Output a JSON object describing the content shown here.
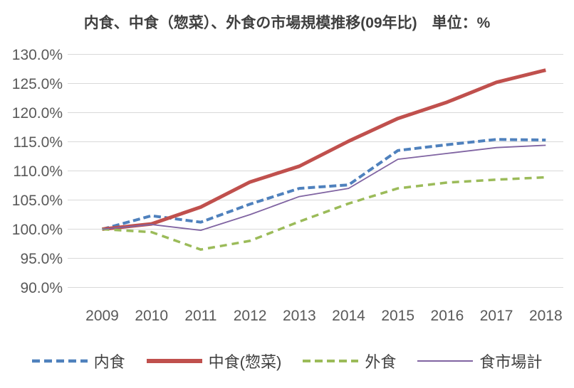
{
  "chart_data": {
    "type": "line",
    "title": "内食、中食（惣菜）、外食の市場規模推移(09年比)　単位：%",
    "xlabel": "",
    "ylabel": "",
    "categories": [
      "2009",
      "2010",
      "2011",
      "2012",
      "2013",
      "2014",
      "2015",
      "2016",
      "2017",
      "2018"
    ],
    "series": [
      {
        "name": "内食",
        "color": "#4f81bd",
        "style": "dashed",
        "values": [
          100.0,
          102.3,
          101.2,
          104.3,
          107.0,
          107.6,
          113.5,
          114.5,
          115.4,
          115.3
        ]
      },
      {
        "name": "中食(惣菜)",
        "color": "#c0504d",
        "style": "solid",
        "values": [
          100.0,
          100.9,
          103.8,
          108.1,
          110.8,
          115.1,
          119.0,
          121.8,
          125.2,
          127.3
        ]
      },
      {
        "name": "外食",
        "color": "#9bbb59",
        "style": "dashed",
        "values": [
          100.0,
          99.5,
          96.5,
          98.0,
          101.3,
          104.4,
          107.0,
          108.0,
          108.5,
          108.9
        ]
      },
      {
        "name": "食市場計",
        "color": "#8064a2",
        "style": "solid",
        "values": [
          100.0,
          100.8,
          99.8,
          102.5,
          105.6,
          107.0,
          112.0,
          113.0,
          114.0,
          114.4
        ]
      }
    ],
    "ylim": [
      90,
      130
    ],
    "ytick_step": 5,
    "yticks": [
      "90.0%",
      "95.0%",
      "100.0%",
      "105.0%",
      "110.0%",
      "115.0%",
      "120.0%",
      "125.0%",
      "130.0%"
    ],
    "grid": true,
    "legend_position": "bottom",
    "colors": {
      "grid": "#d9d9d9",
      "axis_text": "#595959",
      "title_text": "#404040",
      "background": "#ffffff"
    }
  }
}
